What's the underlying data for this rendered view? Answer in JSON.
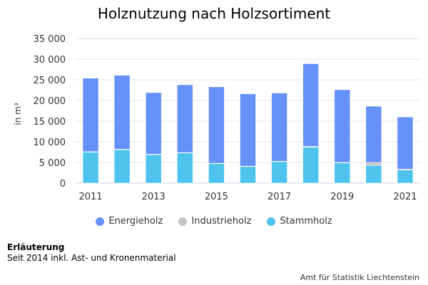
{
  "chart_data": {
    "type": "bar",
    "stacked": true,
    "title": "Holznutzung nach Holzsortiment",
    "ylabel": "in m³",
    "ylim": [
      0,
      35000
    ],
    "yticks": [
      "0",
      "5 000",
      "10 000",
      "15 000",
      "20 000",
      "25 000",
      "30 000",
      "35 000"
    ],
    "ytick_values": [
      0,
      5000,
      10000,
      15000,
      20000,
      25000,
      30000,
      35000
    ],
    "categories": [
      "2011",
      "2012",
      "2013",
      "2014",
      "2015",
      "2016",
      "2017",
      "2018",
      "2019",
      "2020",
      "2021"
    ],
    "xtick_labels": [
      "2011",
      "2013",
      "2015",
      "2017",
      "2019",
      "2021"
    ],
    "grid": true,
    "legend_position": "bottom",
    "series": [
      {
        "name": "Stammholz",
        "color": "#4dc3ee",
        "values": [
          7500,
          8100,
          6900,
          7300,
          4700,
          4000,
          5200,
          8700,
          4900,
          4300,
          3200
        ]
      },
      {
        "name": "Industrieholz",
        "color": "#c4c4c4",
        "values": [
          100,
          100,
          100,
          100,
          100,
          100,
          100,
          200,
          100,
          700,
          200
        ]
      },
      {
        "name": "Energieholz",
        "color": "#6691f8",
        "values": [
          17800,
          17900,
          14900,
          16400,
          18500,
          17500,
          16500,
          20000,
          17600,
          13600,
          12600
        ]
      }
    ],
    "legend_order": [
      "Energieholz",
      "Industrieholz",
      "Stammholz"
    ]
  },
  "note": {
    "title": "Erläuterung",
    "text": "Seit 2014 inkl. Ast- und Kronenmaterial"
  },
  "source": "Amt für Statistik Liechtenstein"
}
